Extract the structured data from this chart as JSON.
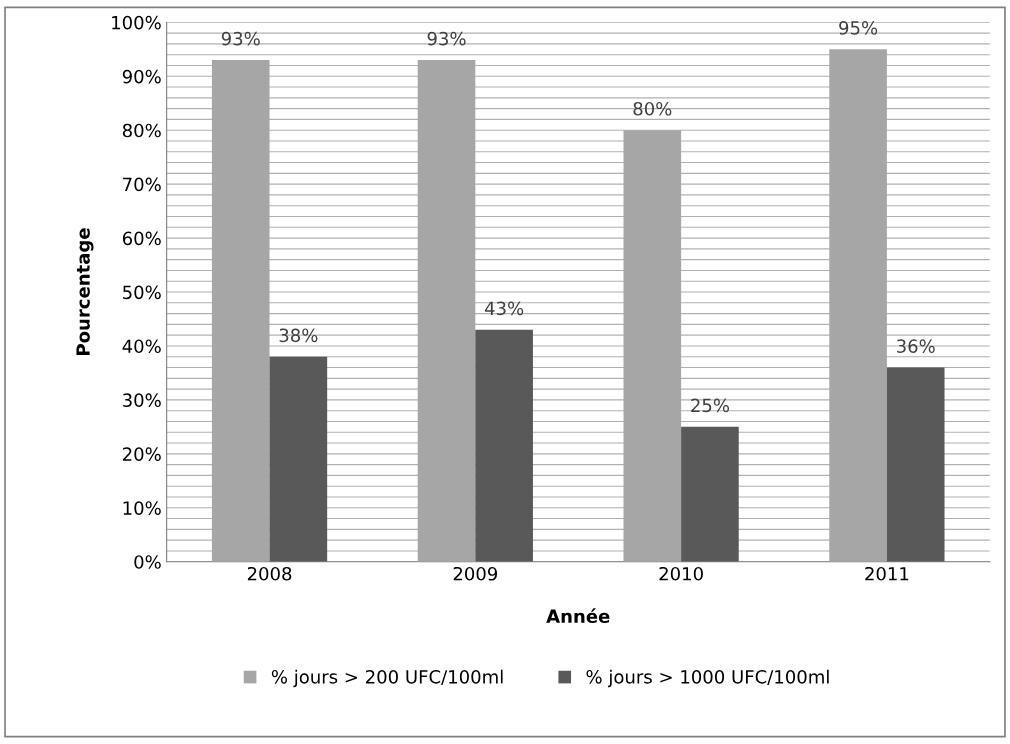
{
  "chart_data": {
    "type": "bar",
    "xlabel": "Année",
    "ylabel": "Pourcentage",
    "categories": [
      "2008",
      "2009",
      "2010",
      "2011"
    ],
    "series": [
      {
        "name": "% jours > 200 UFC/100ml",
        "color": "#a6a6a6",
        "values": [
          93,
          93,
          80,
          95
        ],
        "value_labels": [
          "93%",
          "93%",
          "80%",
          "95%"
        ]
      },
      {
        "name": "% jours > 1000 UFC/100ml",
        "color": "#595959",
        "values": [
          38,
          43,
          25,
          36
        ],
        "value_labels": [
          "38%",
          "43%",
          "25%",
          "36%"
        ]
      }
    ],
    "ylim": [
      0,
      100
    ],
    "yticks": [
      {
        "value": 0,
        "label": "0%"
      },
      {
        "value": 2,
        "label": null
      },
      {
        "value": 4,
        "label": null
      },
      {
        "value": 6,
        "label": null
      },
      {
        "value": 8,
        "label": null
      },
      {
        "value": 10,
        "label": "10%"
      },
      {
        "value": 12,
        "label": null
      },
      {
        "value": 14,
        "label": null
      },
      {
        "value": 16,
        "label": null
      },
      {
        "value": 18,
        "label": null
      },
      {
        "value": 20,
        "label": "20%"
      },
      {
        "value": 22,
        "label": null
      },
      {
        "value": 24,
        "label": null
      },
      {
        "value": 26,
        "label": null
      },
      {
        "value": 28,
        "label": null
      },
      {
        "value": 30,
        "label": "30%"
      },
      {
        "value": 32,
        "label": null
      },
      {
        "value": 34,
        "label": null
      },
      {
        "value": 36,
        "label": null
      },
      {
        "value": 38,
        "label": null
      },
      {
        "value": 40,
        "label": "40%"
      },
      {
        "value": 42,
        "label": null
      },
      {
        "value": 44,
        "label": null
      },
      {
        "value": 46,
        "label": null
      },
      {
        "value": 48,
        "label": null
      },
      {
        "value": 50,
        "label": "50%"
      },
      {
        "value": 52,
        "label": null
      },
      {
        "value": 54,
        "label": null
      },
      {
        "value": 56,
        "label": null
      },
      {
        "value": 58,
        "label": null
      },
      {
        "value": 60,
        "label": "60%"
      },
      {
        "value": 62,
        "label": null
      },
      {
        "value": 64,
        "label": null
      },
      {
        "value": 66,
        "label": null
      },
      {
        "value": 68,
        "label": null
      },
      {
        "value": 70,
        "label": "70%"
      },
      {
        "value": 72,
        "label": null
      },
      {
        "value": 74,
        "label": null
      },
      {
        "value": 76,
        "label": null
      },
      {
        "value": 78,
        "label": null
      },
      {
        "value": 80,
        "label": "80%"
      },
      {
        "value": 82,
        "label": null
      },
      {
        "value": 84,
        "label": null
      },
      {
        "value": 86,
        "label": null
      },
      {
        "value": 88,
        "label": null
      },
      {
        "value": 90,
        "label": "90%"
      },
      {
        "value": 92,
        "label": null
      },
      {
        "value": 94,
        "label": null
      },
      {
        "value": 96,
        "label": null
      },
      {
        "value": 98,
        "label": null
      },
      {
        "value": 100,
        "label": "100%"
      }
    ],
    "grid": "y",
    "legend": "bottom"
  }
}
